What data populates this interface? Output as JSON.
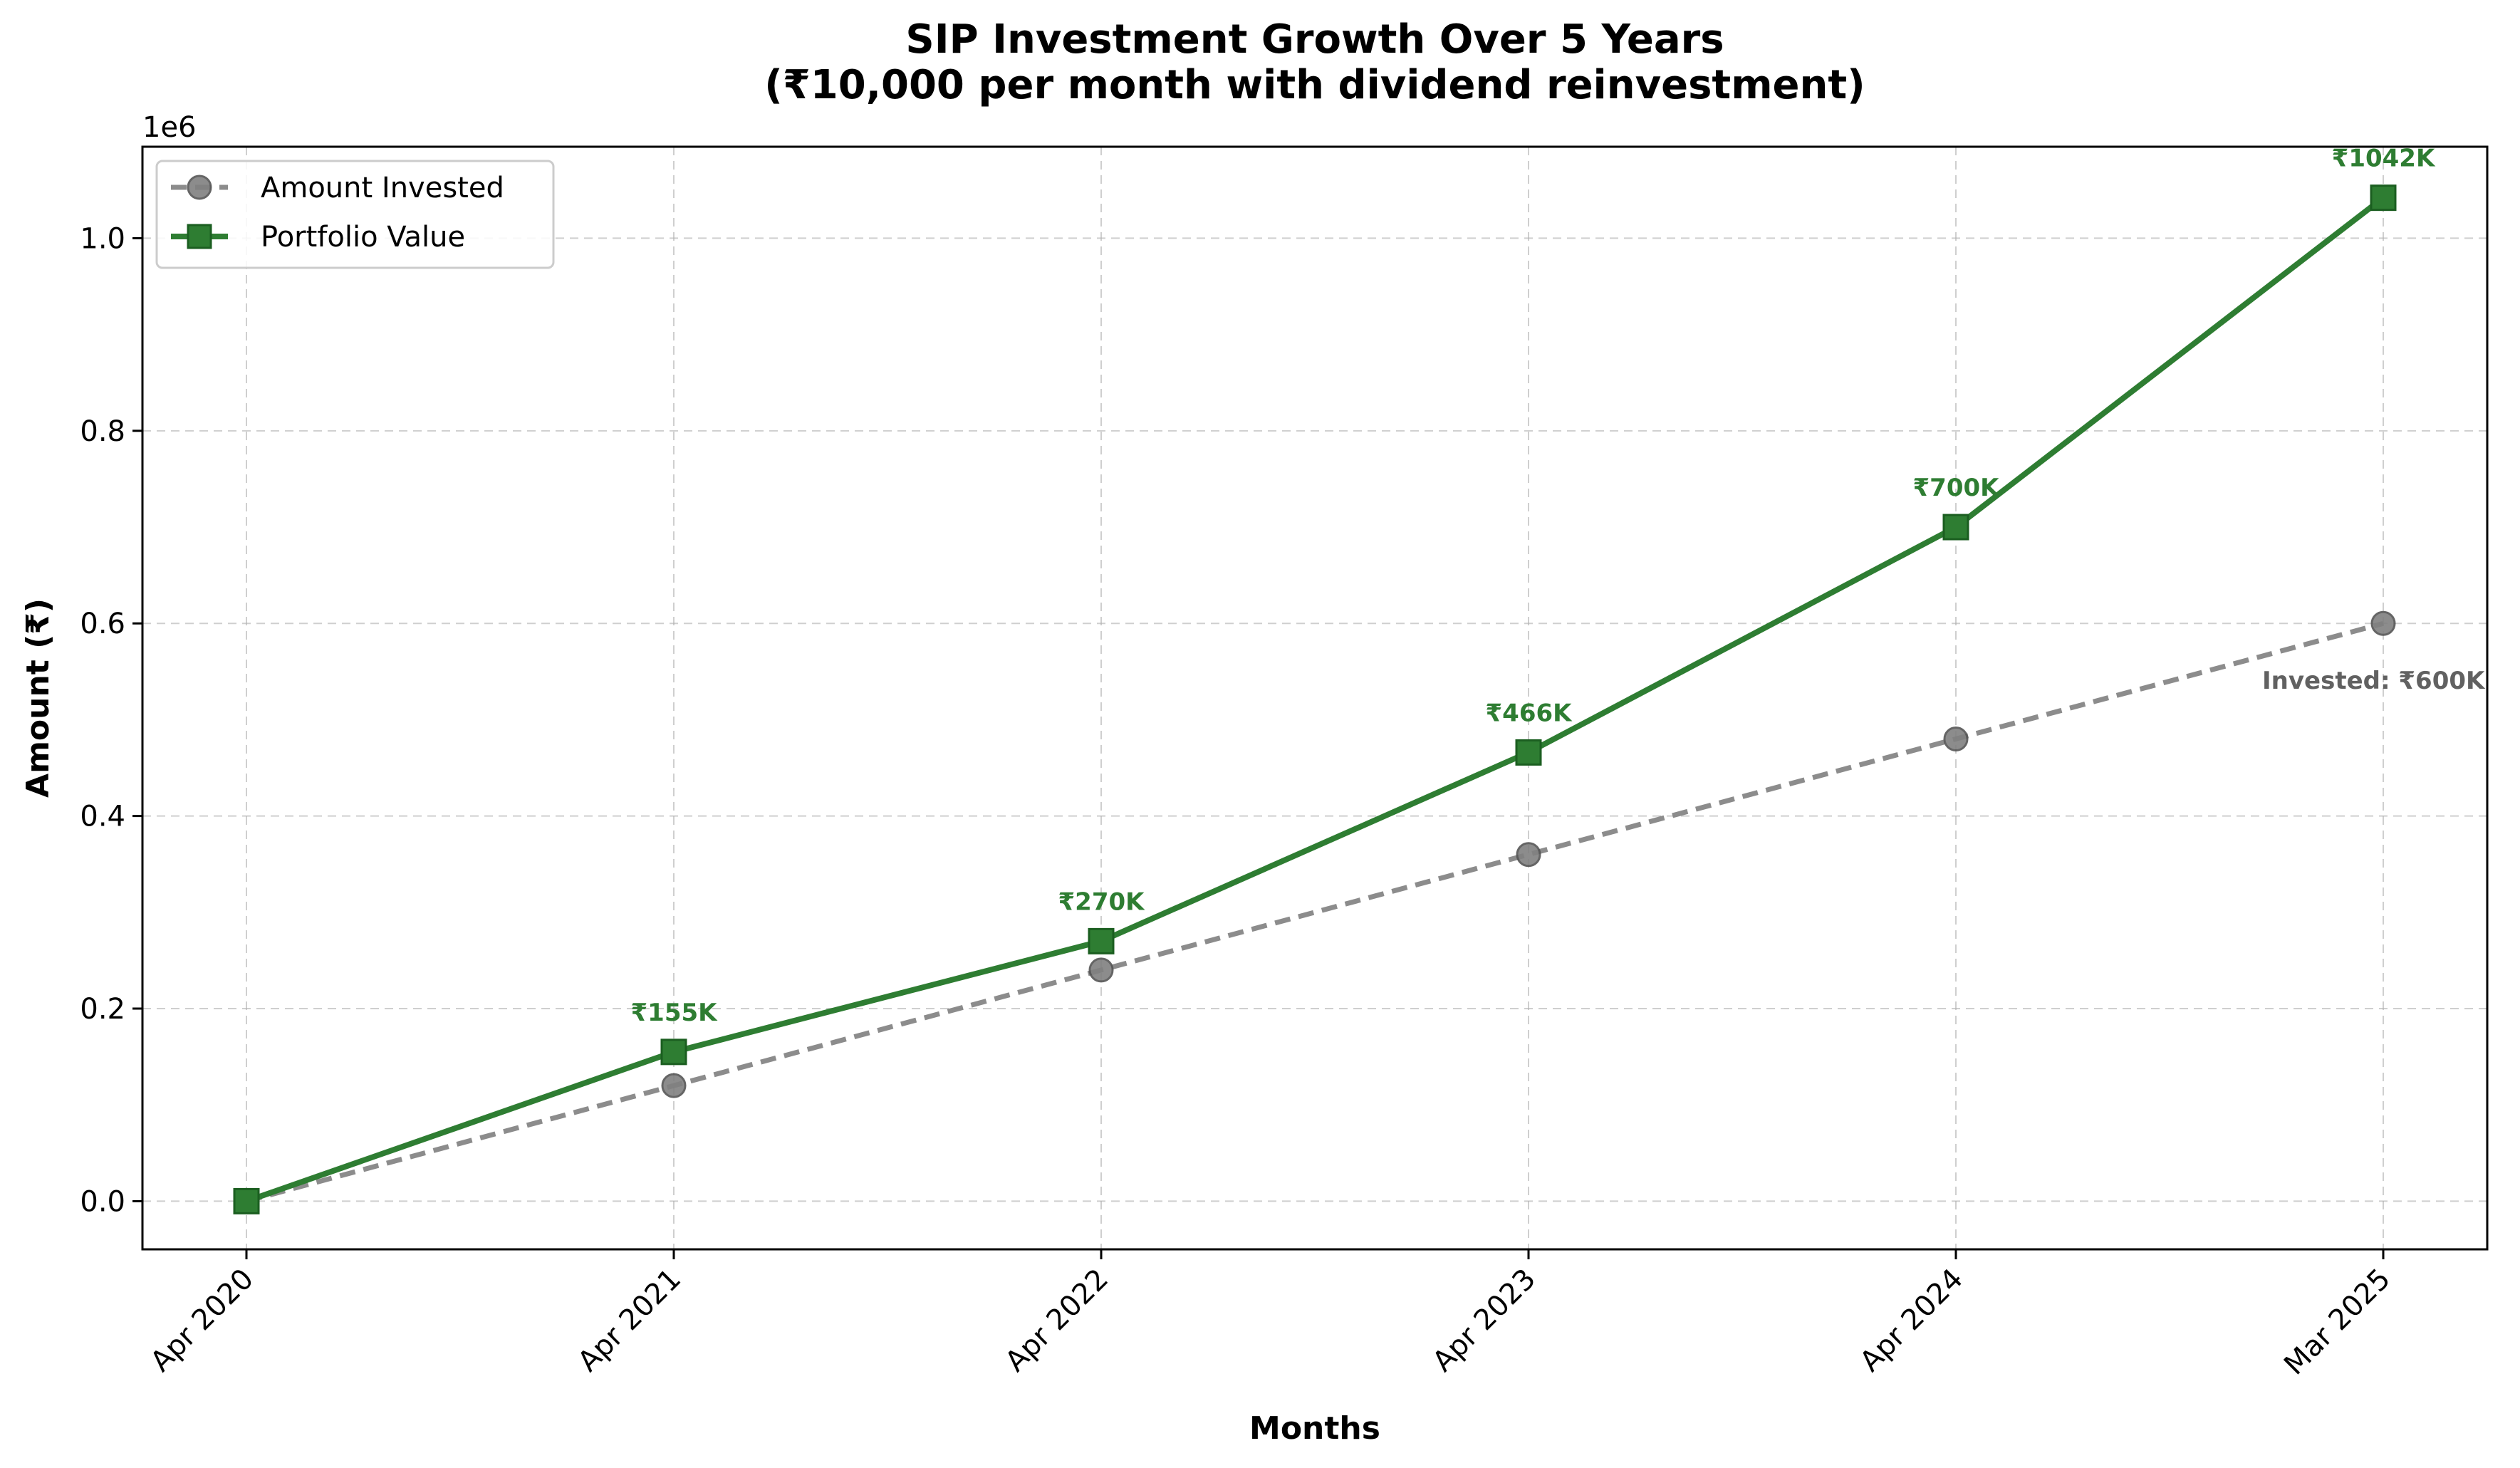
{
  "chart_data": {
    "type": "line",
    "title_line1": "SIP Investment Growth Over 5 Years",
    "title_line2": "(₹10,000 per month with dividend reinvestment)",
    "xlabel": "Months",
    "ylabel": "Amount (₹)",
    "y_offset_label": "1e6",
    "categories": [
      "Apr 2020",
      "Apr 2021",
      "Apr 2022",
      "Apr 2023",
      "Apr 2024",
      "Mar 2025"
    ],
    "ylim": [
      -0.05,
      1.095
    ],
    "yticks": [
      0.0,
      0.2,
      0.4,
      0.6,
      0.8,
      1.0
    ],
    "ytick_labels": [
      "0.0",
      "0.2",
      "0.4",
      "0.6",
      "0.8",
      "1.0"
    ],
    "grid": true,
    "legend_position": "top-left",
    "series": [
      {
        "name": "Amount Invested",
        "values": [
          0.0,
          0.12,
          0.24,
          0.36,
          0.48,
          0.6
        ],
        "color": "#808080",
        "style": "dashed",
        "marker": "circle"
      },
      {
        "name": "Portfolio Value",
        "values": [
          0.0,
          0.155,
          0.27,
          0.466,
          0.7,
          1.042
        ],
        "color": "#2e7d32",
        "style": "solid",
        "marker": "square"
      }
    ],
    "annotations": {
      "portfolio_labels": [
        "",
        "₹155K",
        "₹270K",
        "₹466K",
        "₹700K",
        "₹1042K"
      ],
      "invested_label": "Invested: ₹600K"
    }
  }
}
